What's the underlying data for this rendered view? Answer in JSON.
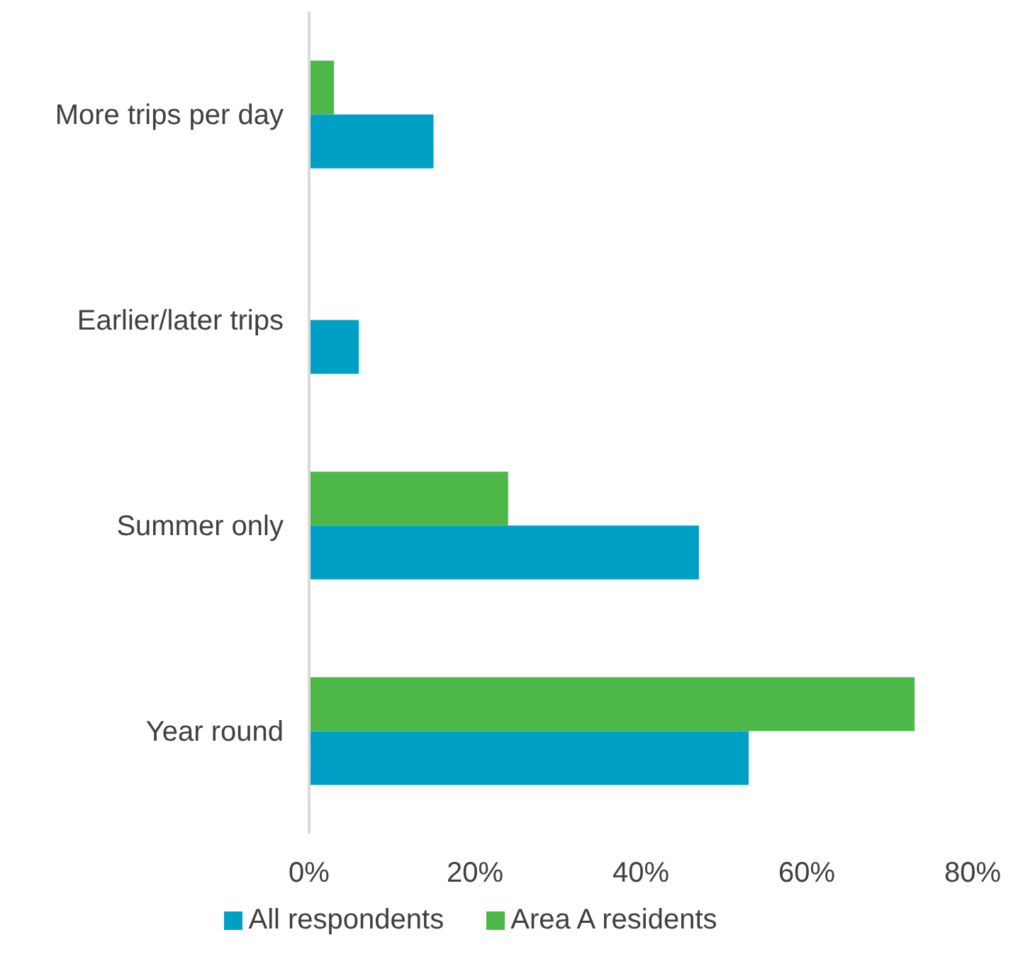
{
  "chart_data": {
    "type": "bar",
    "orientation": "horizontal",
    "categories": [
      "More trips per day",
      "Earlier/later trips",
      "Summer only",
      "Year round"
    ],
    "series": [
      {
        "name": "Area A residents",
        "color": "#4db848",
        "values": [
          3,
          0,
          24,
          73
        ]
      },
      {
        "name": "All respondents",
        "color": "#00a0c6",
        "values": [
          15,
          6,
          47,
          53
        ]
      }
    ],
    "xlim": [
      0,
      80
    ],
    "xticks": [
      {
        "value": 0,
        "label": "0%"
      },
      {
        "value": 20,
        "label": "20%"
      },
      {
        "value": 40,
        "label": "40%"
      },
      {
        "value": 60,
        "label": "60%"
      },
      {
        "value": 80,
        "label": "80%"
      }
    ],
    "grid": false,
    "legend": "bottom"
  }
}
